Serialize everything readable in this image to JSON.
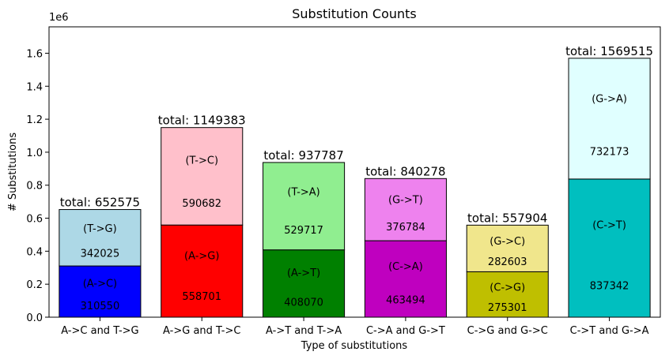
{
  "chart_data": {
    "type": "bar",
    "stacked": true,
    "title": "Substitution Counts",
    "xlabel": "Type of substitutions",
    "ylabel": "# Substitutions",
    "y_offset_label": "1e6",
    "ylim": [
      0,
      1760000
    ],
    "yticks": [
      0,
      200000,
      400000,
      600000,
      800000,
      1000000,
      1200000,
      1400000,
      1600000
    ],
    "ytick_labels": [
      "0.0",
      "0.2",
      "0.4",
      "0.6",
      "0.8",
      "1.0",
      "1.2",
      "1.4",
      "1.6"
    ],
    "grid": false,
    "categories": [
      "A->C and T->G",
      "A->G and T->C",
      "A->T and T->A",
      "C->A and G->T",
      "C->G and G->C",
      "C->T and G->A"
    ],
    "series": [
      {
        "labels": [
          "(A->C)",
          "(A->G)",
          "(A->T)",
          "(C->A)",
          "(C->G)",
          "(C->T)"
        ],
        "values": [
          310550,
          558701,
          408070,
          463494,
          275301,
          837342
        ],
        "value_labels": [
          "310550",
          "558701",
          "408070",
          "463494",
          "275301",
          "837342"
        ],
        "colors": [
          "#0000ff",
          "#ff0000",
          "#008000",
          "#bf00bf",
          "#bfbf00",
          "#00bfbf"
        ]
      },
      {
        "labels": [
          "(T->G)",
          "(T->C)",
          "(T->A)",
          "(G->T)",
          "(G->C)",
          "(G->A)"
        ],
        "values": [
          342025,
          590682,
          529717,
          376784,
          282603,
          732173
        ],
        "value_labels": [
          "342025",
          "590682",
          "529717",
          "376784",
          "282603",
          "732173"
        ],
        "colors": [
          "#add8e6",
          "#ffc0cb",
          "#90ee90",
          "#ee82ee",
          "#f0e68c",
          "#e0ffff"
        ]
      }
    ],
    "totals": [
      "total: 652575",
      "total: 1149383",
      "total: 937787",
      "total: 840278",
      "total: 557904",
      "total: 1569515"
    ]
  }
}
